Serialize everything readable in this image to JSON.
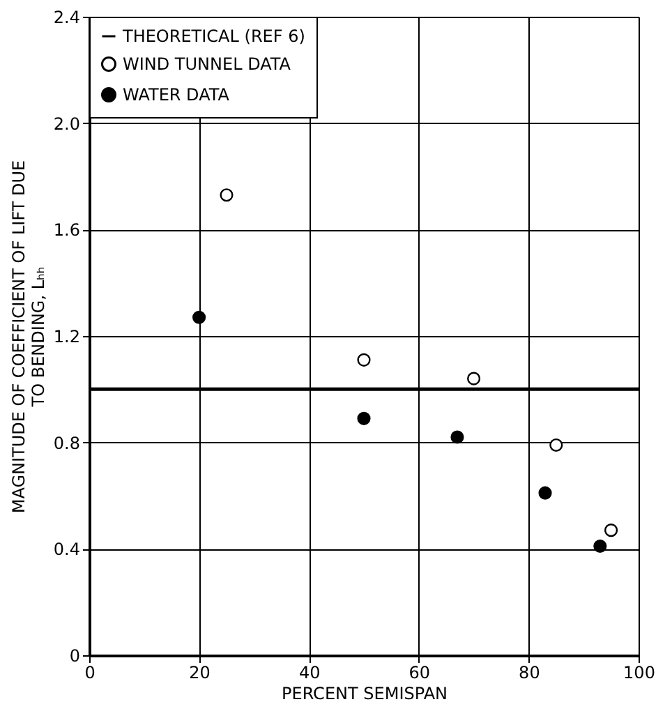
{
  "chart_data": {
    "type": "scatter",
    "xlabel": "PERCENT SEMISPAN",
    "ylabel": "MAGNITUDE OF COEFFICIENT OF LIFT DUE\nTO BENDING, Lₕₕ",
    "xlim": [
      0,
      100
    ],
    "xticks": [
      0,
      20,
      40,
      60,
      80,
      100
    ],
    "ylim": [
      0,
      2.4
    ],
    "yticks": [
      0,
      0.4,
      0.8,
      1.2,
      1.6,
      {
        "value": 2,
        "label": "2.0"
      },
      2.4
    ],
    "grid": true,
    "legend": "top left",
    "marker": "circle",
    "series": [
      {
        "name": "THEORETICAL (REF 6)",
        "type": "line",
        "color": "#000000",
        "line_style": "solid",
        "marker": "none",
        "x": [
          0,
          100
        ],
        "values": [
          1.0,
          1.0
        ]
      },
      {
        "name": "WIND TUNNEL DATA",
        "color": "#ffffff",
        "x": [
          25,
          50,
          70,
          85,
          95
        ],
        "values": [
          1.73,
          1.11,
          1.04,
          0.79,
          0.47
        ]
      },
      {
        "name": "WATER DATA",
        "color": "#000000",
        "x": [
          20,
          50,
          67,
          83,
          93
        ],
        "values": [
          1.27,
          0.89,
          0.82,
          0.61,
          0.41
        ]
      }
    ]
  }
}
